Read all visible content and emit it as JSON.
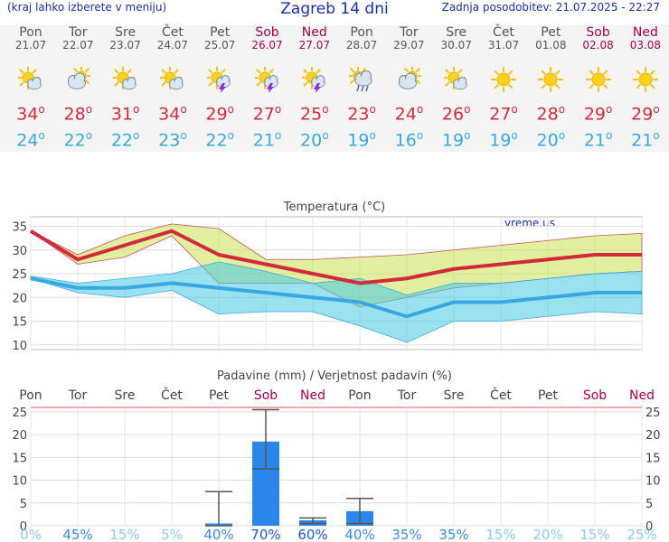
{
  "header": {
    "left_text": "(kraj lahko izberete v meniju)",
    "title": "Zagreb 14 dni",
    "updated": "Zadnja posodobitev: 21.07.2025 - 22:27"
  },
  "colors": {
    "max": "#d12a3c",
    "min": "#3aa8e0",
    "weekend": "#a0004a",
    "text": "#555555",
    "precip_bar": "#2a86e8"
  },
  "forecast": [
    {
      "day": "Pon",
      "date": "21.07",
      "max": "34",
      "min": "24",
      "icon": "sun-cloud-icon",
      "weekend": false
    },
    {
      "day": "Tor",
      "date": "22.07",
      "max": "28",
      "min": "22",
      "icon": "cloud-sun-icon",
      "weekend": false
    },
    {
      "day": "Sre",
      "date": "23.07",
      "max": "31",
      "min": "22",
      "icon": "sun-cloud-icon",
      "weekend": false
    },
    {
      "day": "Čet",
      "date": "24.07",
      "max": "34",
      "min": "23",
      "icon": "sun-cloud-icon",
      "weekend": false
    },
    {
      "day": "Pet",
      "date": "25.07",
      "max": "29",
      "min": "22",
      "icon": "sun-storm-icon",
      "weekend": false
    },
    {
      "day": "Sob",
      "date": "26.07",
      "max": "27",
      "min": "21",
      "icon": "sun-storm-icon",
      "weekend": true
    },
    {
      "day": "Ned",
      "date": "27.07",
      "max": "25",
      "min": "20",
      "icon": "sun-storm-icon",
      "weekend": true
    },
    {
      "day": "Pon",
      "date": "28.07",
      "max": "23",
      "min": "19",
      "icon": "sun-rain-icon",
      "weekend": false
    },
    {
      "day": "Tor",
      "date": "29.07",
      "max": "24",
      "min": "16",
      "icon": "cloud-sun-icon",
      "weekend": false
    },
    {
      "day": "Sre",
      "date": "30.07",
      "max": "26",
      "min": "19",
      "icon": "sun-cloud-icon",
      "weekend": false
    },
    {
      "day": "Čet",
      "date": "31.07",
      "max": "27",
      "min": "19",
      "icon": "sun-icon",
      "weekend": false
    },
    {
      "day": "Pet",
      "date": "01.08",
      "max": "28",
      "min": "20",
      "icon": "sun-icon",
      "weekend": false
    },
    {
      "day": "Sob",
      "date": "02.08",
      "max": "29",
      "min": "21",
      "icon": "sun-icon",
      "weekend": true
    },
    {
      "day": "Ned",
      "date": "03.08",
      "max": "29",
      "min": "21",
      "icon": "sun-icon",
      "weekend": true
    }
  ],
  "chart_data": [
    {
      "type": "line",
      "title": "Temperatura (°C)",
      "watermark": "vreme.us",
      "ylim": [
        9,
        37
      ],
      "yticks": [
        10,
        15,
        20,
        25,
        30,
        35
      ],
      "x": [
        "21.07",
        "22.07",
        "23.07",
        "24.07",
        "25.07",
        "26.07",
        "27.07",
        "28.07",
        "29.07",
        "30.07",
        "31.07",
        "01.08",
        "02.08",
        "03.08"
      ],
      "series": [
        {
          "values": [
            34,
            28,
            31,
            34,
            29,
            27,
            25,
            23,
            24,
            26,
            27,
            28,
            29,
            29
          ],
          "color": "#d12a3c"
        },
        {
          "values": [
            24,
            22,
            22,
            23,
            22,
            21,
            20,
            19,
            16,
            19,
            19,
            20,
            21,
            21
          ],
          "color": "#3aa8e0"
        }
      ],
      "max_band": {
        "upper": [
          34,
          29,
          33,
          35.5,
          34.5,
          28,
          28,
          28.5,
          29,
          30,
          31,
          32,
          33,
          33.5
        ],
        "lower": [
          34,
          27,
          28.5,
          33,
          23,
          23,
          23,
          18,
          20,
          22,
          23,
          24,
          25,
          25.5
        ]
      },
      "min_band": {
        "upper": [
          24.5,
          23,
          24,
          25,
          27.5,
          25.5,
          23,
          24,
          20.5,
          23,
          23,
          24,
          25,
          25.5
        ],
        "lower": [
          24,
          21,
          20,
          21.5,
          16.5,
          17,
          17,
          14,
          10.5,
          15,
          15,
          16,
          17,
          16.5
        ]
      },
      "grid": true
    },
    {
      "type": "bar",
      "title": "Padavine (mm) / Verjetnost padavin (%)",
      "categories": [
        "Pon",
        "Tor",
        "Sre",
        "Čet",
        "Pet",
        "Sob",
        "Ned",
        "Pon",
        "Tor",
        "Sre",
        "Čet",
        "Pet",
        "Sob",
        "Ned"
      ],
      "weekend": [
        false,
        false,
        false,
        false,
        false,
        true,
        true,
        false,
        false,
        false,
        false,
        false,
        true,
        true
      ],
      "ylim": [
        0,
        26
      ],
      "yticks": [
        0,
        5,
        10,
        15,
        20,
        25
      ],
      "values": [
        0,
        0,
        0,
        0,
        0.5,
        18.5,
        1.2,
        3.2,
        0,
        0,
        0,
        0,
        0,
        0
      ],
      "error_low": [
        0,
        0,
        0,
        0,
        0,
        12.5,
        0.5,
        0.5,
        0,
        0,
        0,
        0,
        0,
        0
      ],
      "error_high": [
        0,
        0,
        0,
        0,
        7.5,
        25.5,
        1.7,
        6,
        0,
        0,
        0,
        0,
        0,
        0
      ],
      "probability_labels": [
        "0%",
        "45%",
        "15%",
        "5%",
        "40%",
        "70%",
        "60%",
        "40%",
        "35%",
        "35%",
        "15%",
        "20%",
        "15%",
        "25%"
      ],
      "probability": [
        0,
        45,
        15,
        5,
        40,
        70,
        60,
        40,
        35,
        35,
        15,
        20,
        15,
        25
      ],
      "grid": true
    }
  ]
}
